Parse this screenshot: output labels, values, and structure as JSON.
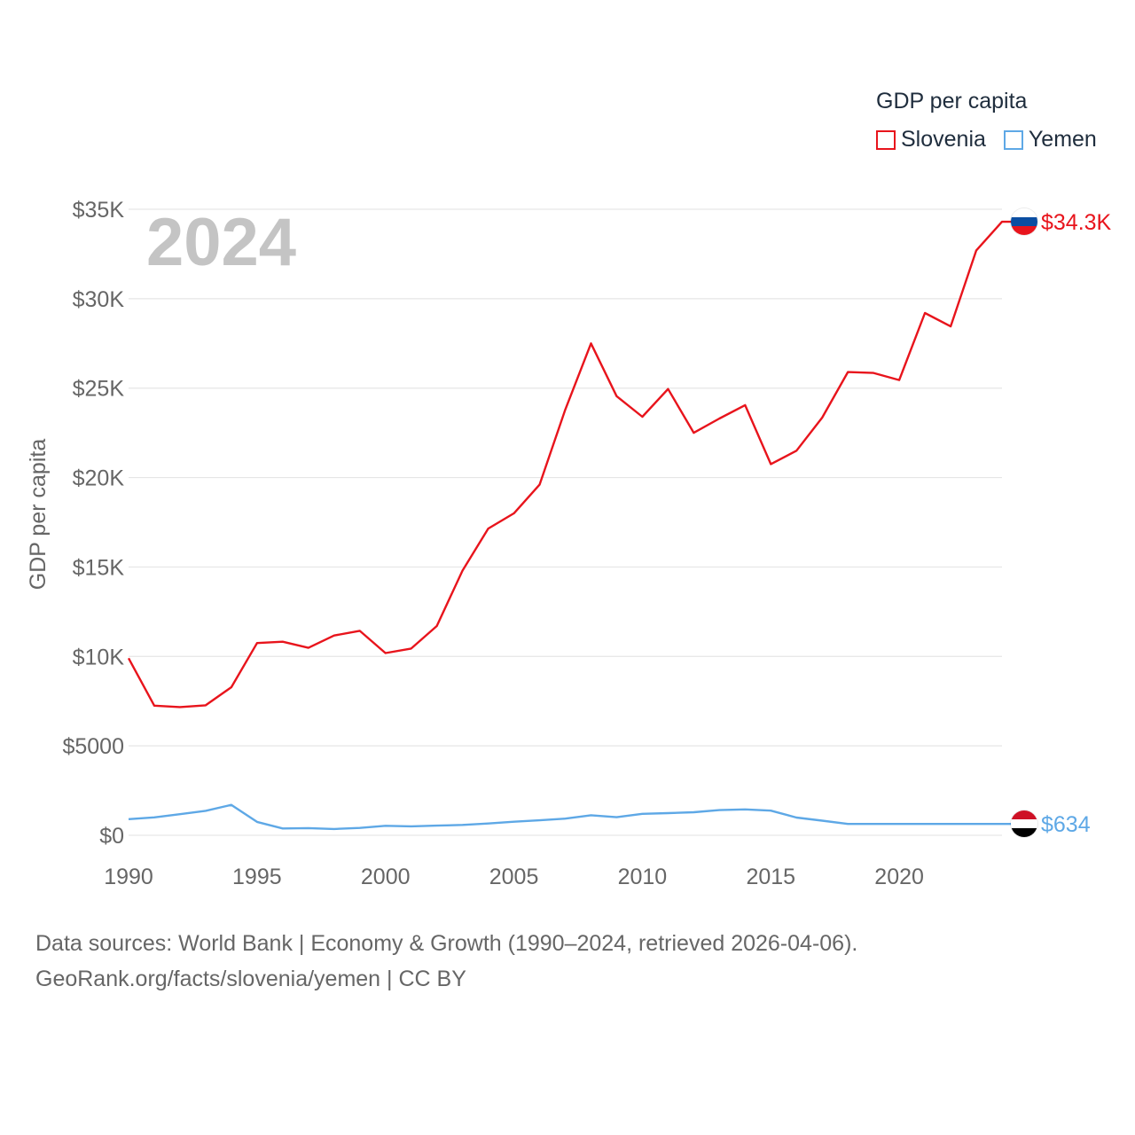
{
  "legend": {
    "title": "GDP per capita",
    "items": [
      {
        "label": "Slovenia",
        "color": "#e8141c"
      },
      {
        "label": "Yemen",
        "color": "#5ea8e6"
      }
    ]
  },
  "footer": {
    "line1": "Data sources: World Bank | Economy & Growth (1990–2024, retrieved 2026-04-06).",
    "line2": "GeoRank.org/facts/slovenia/yemen | CC BY"
  },
  "chart_data": {
    "type": "line",
    "title": "GDP per capita",
    "year_label": "2024",
    "xlabel": "",
    "ylabel": "GDP per capita",
    "xlim": [
      1990,
      2024
    ],
    "ylim": [
      0,
      35000
    ],
    "xticks": [
      1990,
      1995,
      2000,
      2005,
      2010,
      2015,
      2020
    ],
    "xtick_labels": [
      "1990",
      "1995",
      "2000",
      "2005",
      "2010",
      "2015",
      "2020"
    ],
    "yticks": [
      0,
      5000,
      10000,
      15000,
      20000,
      25000,
      30000,
      35000
    ],
    "ytick_labels": [
      "$0",
      "$5000",
      "$10K",
      "$15K",
      "$20K",
      "$25K",
      "$30K",
      "$35K"
    ],
    "x": [
      1990,
      1991,
      1992,
      1993,
      1994,
      1995,
      1996,
      1997,
      1998,
      1999,
      2000,
      2001,
      2002,
      2003,
      2004,
      2005,
      2006,
      2007,
      2008,
      2009,
      2010,
      2011,
      2012,
      2013,
      2014,
      2015,
      2016,
      2017,
      2018,
      2019,
      2020,
      2021,
      2022,
      2023,
      2024
    ],
    "series": [
      {
        "name": "Slovenia",
        "color": "#e8141c",
        "end_label": "$34.3K",
        "flag": "slovenia-flag",
        "values": [
          9900,
          7250,
          7170,
          7270,
          8280,
          10750,
          10820,
          10480,
          11170,
          11430,
          10190,
          10440,
          11700,
          14800,
          17150,
          18000,
          19600,
          23800,
          27500,
          24550,
          23400,
          24950,
          22500,
          23300,
          24050,
          20750,
          21500,
          23350,
          25900,
          25850,
          25450,
          29200,
          28450,
          32700,
          34300
        ]
      },
      {
        "name": "Yemen",
        "color": "#5ea8e6",
        "end_label": "$634",
        "flag": "yemen-flag",
        "values": [
          900,
          1000,
          1180,
          1370,
          1700,
          750,
          380,
          400,
          350,
          410,
          530,
          500,
          540,
          580,
          660,
          760,
          840,
          930,
          1120,
          1010,
          1200,
          1240,
          1290,
          1410,
          1450,
          1380,
          990,
          820,
          634,
          634,
          634,
          634,
          634,
          634,
          634
        ]
      }
    ]
  }
}
